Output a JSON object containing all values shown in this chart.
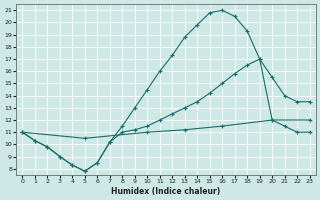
{
  "xlabel": "Humidex (Indice chaleur)",
  "bg_color": "#cde8e5",
  "line_color": "#1a6b6b",
  "grid_color": "#b8d8d5",
  "xlim": [
    -0.5,
    23.5
  ],
  "ylim": [
    7.5,
    21.5
  ],
  "xticks": [
    0,
    1,
    2,
    3,
    4,
    5,
    6,
    7,
    8,
    9,
    10,
    11,
    12,
    13,
    14,
    15,
    16,
    17,
    18,
    19,
    20,
    21,
    22,
    23
  ],
  "yticks": [
    8,
    9,
    10,
    11,
    12,
    13,
    14,
    15,
    16,
    17,
    18,
    19,
    20,
    21
  ],
  "curves": [
    {
      "x": [
        0,
        1,
        2,
        3,
        4,
        5,
        6,
        7,
        8,
        9,
        10,
        11,
        12,
        13,
        14,
        15,
        16,
        17,
        18,
        19,
        20,
        21,
        22,
        23
      ],
      "y": [
        11,
        10.3,
        9.8,
        9.0,
        8.3,
        7.8,
        8.5,
        10.2,
        11.5,
        13.0,
        14.5,
        16.0,
        17.3,
        18.8,
        19.8,
        20.8,
        21.0,
        20.5,
        19.3,
        17.0,
        12.0,
        11.5,
        11.0,
        11.0
      ]
    },
    {
      "x": [
        0,
        1,
        2,
        3,
        4,
        5,
        6,
        7,
        8,
        9,
        10,
        11,
        12,
        13,
        14,
        15,
        16,
        17,
        18,
        19,
        20,
        21,
        22,
        23
      ],
      "y": [
        11,
        10.3,
        9.8,
        9.0,
        8.3,
        7.8,
        8.5,
        10.2,
        11.0,
        11.2,
        11.5,
        12.0,
        12.5,
        13.0,
        13.5,
        14.2,
        15.0,
        15.8,
        16.5,
        17.0,
        15.5,
        14.0,
        13.5,
        13.5
      ]
    },
    {
      "x": [
        0,
        5,
        10,
        13,
        16,
        20,
        23
      ],
      "y": [
        11,
        10.5,
        11.0,
        11.2,
        11.5,
        12.0,
        12.0
      ]
    }
  ]
}
